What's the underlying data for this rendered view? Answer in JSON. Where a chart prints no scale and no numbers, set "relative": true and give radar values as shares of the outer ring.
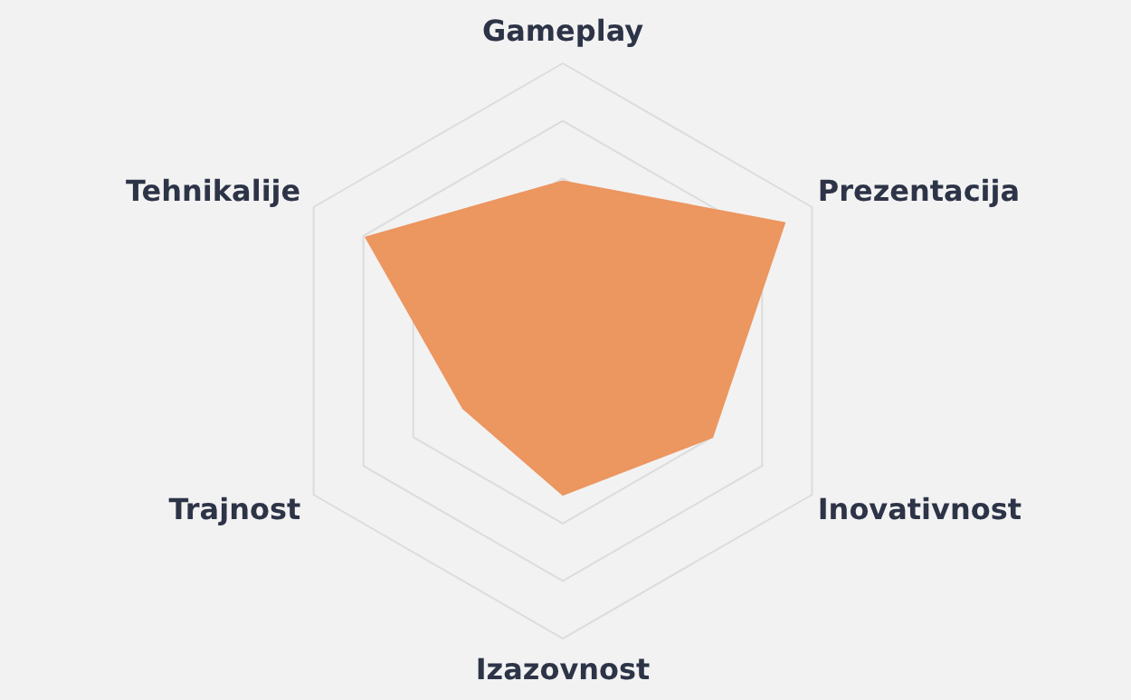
{
  "chart_data": {
    "type": "radar",
    "relative": true,
    "grid": true,
    "categories": [
      "Gameplay",
      "Prezentacija",
      "Inovativnost",
      "Izazovnost",
      "Trajnost",
      "Tehnikalije"
    ],
    "series": [
      {
        "color": "#ec9660",
        "values": [
          0.59,
          0.89,
          0.6,
          0.5,
          0.4,
          0.79
        ]
      }
    ]
  }
}
